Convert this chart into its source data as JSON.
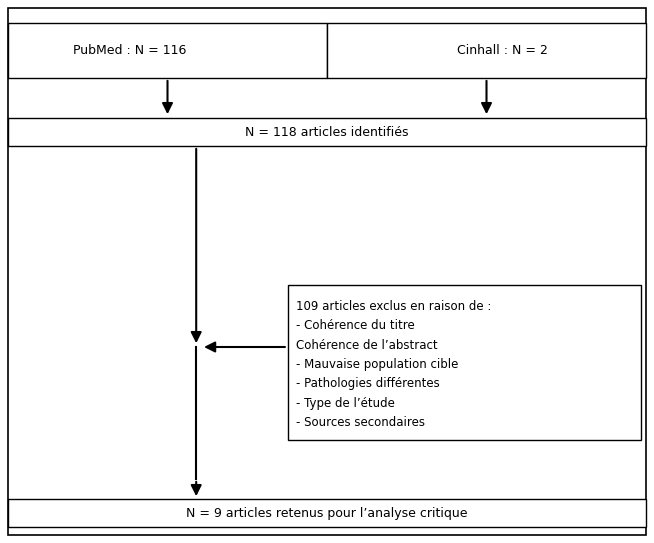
{
  "bg_color": "#ffffff",
  "ec": "#000000",
  "fc": "#ffffff",
  "tc": "#000000",
  "fs": 9,
  "box1_left_text": "PubMed : N = 116",
  "box1_right_text": "Cinhall : N = 2",
  "box2_text": "N = 118 articles identifiés",
  "box3_line1": "109 articles exclus en raison de :",
  "box3_line2": "- Cohérence du titre",
  "box3_line3": "Cohérence de l’abstract",
  "box3_line4": "- Mauvaise population cible",
  "box3_line5": "- Pathologies différentes",
  "box3_line6": "- Type de l’étude",
  "box3_line7": "- Sources secondaires",
  "box4_text": "N = 9 articles retenus pour l’analyse critique",
  "outer_lw": 1.2,
  "inner_lw": 1.0
}
